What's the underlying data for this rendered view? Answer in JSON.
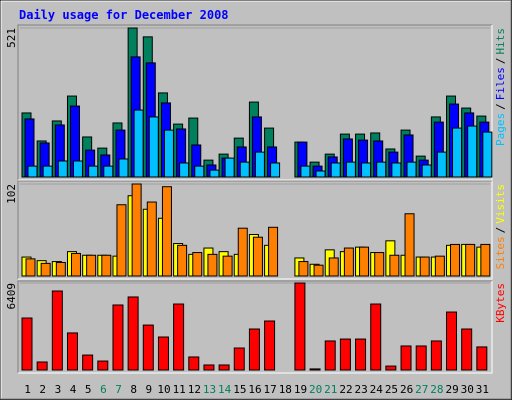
{
  "title": "Daily usage for December 2008",
  "chart_data": [
    {
      "type": "bar",
      "ylim": [
        0,
        521
      ],
      "yticks": [
        521
      ],
      "legend_separator": "/",
      "series": [
        {
          "name": "Pages",
          "color": "#00C0FF",
          "values": [
            38,
            38,
            56,
            56,
            38,
            38,
            63,
            234,
            210,
            164,
            49,
            38,
            24,
            66,
            52,
            87,
            49,
            0,
            38,
            21,
            49,
            52,
            49,
            52,
            49,
            52,
            42,
            87,
            171,
            178,
            157
          ]
        },
        {
          "name": "Files",
          "color": "#0000FF",
          "values": [
            203,
            119,
            182,
            248,
            94,
            77,
            164,
            420,
            399,
            259,
            168,
            112,
            42,
            66,
            105,
            210,
            105,
            0,
            122,
            38,
            70,
            133,
            129,
            126,
            87,
            147,
            59,
            192,
            255,
            224,
            192
          ]
        },
        {
          "name": "Hits",
          "color": "#00805C",
          "values": [
            224,
            126,
            196,
            283,
            140,
            101,
            189,
            521,
            490,
            294,
            185,
            206,
            59,
            80,
            136,
            262,
            171,
            0,
            122,
            52,
            80,
            150,
            150,
            154,
            98,
            164,
            73,
            210,
            283,
            241,
            213
          ]
        }
      ]
    },
    {
      "type": "bar",
      "ylim": [
        0,
        102
      ],
      "yticks": [
        102
      ],
      "legend_separator": "/",
      "series": [
        {
          "name": "Sites",
          "color": "#FF8000",
          "values": [
            19,
            14,
            15,
            25,
            23,
            23,
            79,
            102,
            82,
            99,
            34,
            26,
            24,
            22,
            53,
            43,
            54,
            0,
            16,
            12,
            20,
            31,
            32,
            26,
            23,
            69,
            21,
            22,
            35,
            35,
            35
          ]
        },
        {
          "name": "Visits",
          "color": "#FFFF00",
          "values": [
            21,
            17,
            16,
            27,
            23,
            23,
            22,
            89,
            74,
            64,
            36,
            24,
            31,
            27,
            24,
            46,
            34,
            0,
            20,
            13,
            29,
            27,
            32,
            26,
            39,
            23,
            21,
            21,
            34,
            35,
            32
          ]
        }
      ]
    },
    {
      "type": "bar",
      "ylim": [
        0,
        6409
      ],
      "yticks": [
        6409
      ],
      "legend_separator": "/",
      "categories": [
        "1",
        "2",
        "3",
        "4",
        "5",
        "6",
        "7",
        "8",
        "9",
        "10",
        "11",
        "12",
        "13",
        "14",
        "15",
        "16",
        "17",
        "18",
        "19",
        "20",
        "21",
        "22",
        "23",
        "24",
        "25",
        "26",
        "27",
        "28",
        "29",
        "30",
        "31"
      ],
      "category_colors": [
        "#000000",
        "#000000",
        "#000000",
        "#000000",
        "#000000",
        "#00805C",
        "#00805C",
        "#000000",
        "#000000",
        "#000000",
        "#000000",
        "#000000",
        "#00805C",
        "#00805C",
        "#000000",
        "#000000",
        "#000000",
        "#000000",
        "#000000",
        "#00805C",
        "#00805C",
        "#000000",
        "#000000",
        "#000000",
        "#000000",
        "#000000",
        "#00805C",
        "#00805C",
        "#000000",
        "#000000",
        "#000000"
      ],
      "series": [
        {
          "name": "KBytes",
          "color": "#FF0000",
          "values": [
            3830,
            590,
            5820,
            2730,
            1100,
            660,
            4790,
            5380,
            3310,
            2430,
            4860,
            960,
            370,
            370,
            1620,
            3020,
            3610,
            0,
            6409,
            80,
            2140,
            2280,
            2280,
            4860,
            290,
            1770,
            1770,
            2140,
            4270,
            3020,
            1700
          ]
        }
      ]
    }
  ]
}
